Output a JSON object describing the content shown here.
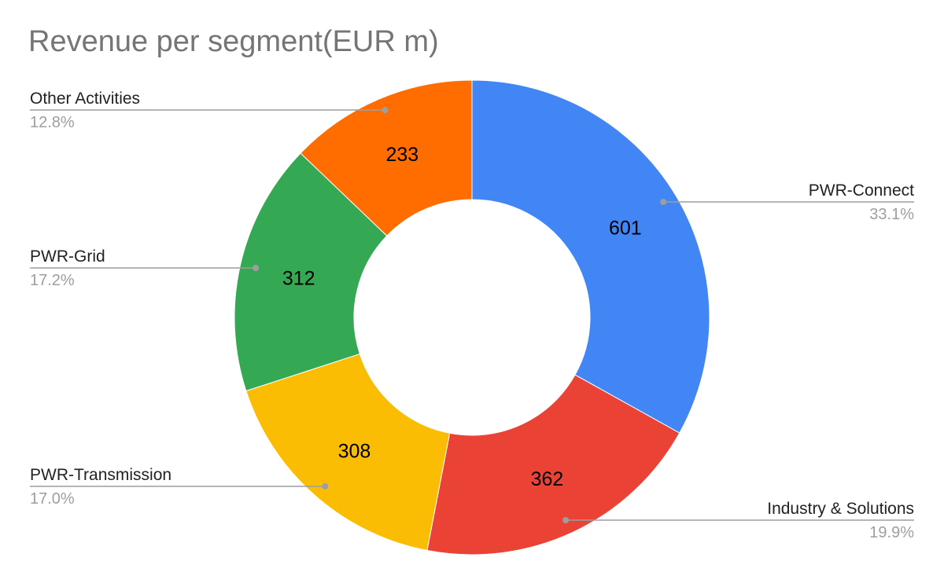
{
  "chart_data": {
    "type": "pie",
    "title": "Revenue per segment(EUR m)",
    "donut": true,
    "categories": [
      "PWR-Connect",
      "Industry & Solutions",
      "PWR-Transmission",
      "PWR-Grid",
      "Other Activities"
    ],
    "values": [
      601,
      362,
      308,
      312,
      233
    ],
    "percent_labels": [
      "33.1%",
      "19.9%",
      "17.0%",
      "17.2%",
      "12.8%"
    ],
    "colors": [
      "#4285F4",
      "#EA4335",
      "#FBBC04",
      "#34A853",
      "#FF6D01"
    ],
    "legend": "none"
  }
}
